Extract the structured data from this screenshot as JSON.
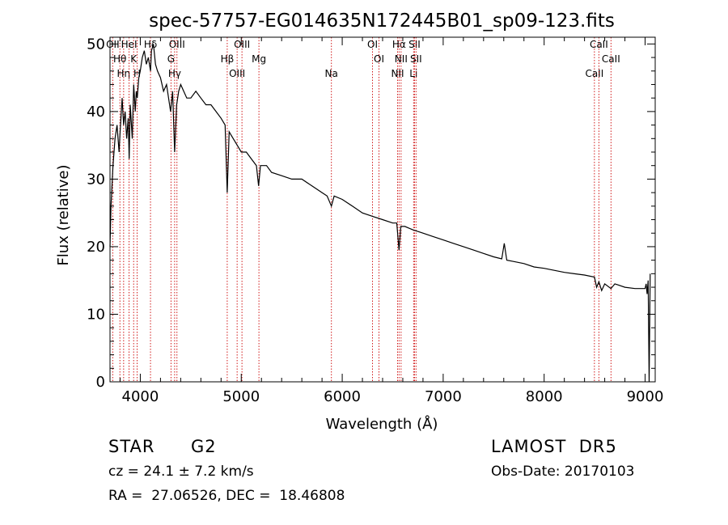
{
  "chart_data": {
    "type": "line",
    "title": "spec-57757-EG014635N172445B01_sp09-123.fits",
    "xlabel": "Wavelength (Å)",
    "ylabel": "Flux (relative)",
    "xlim": [
      3700,
      9100
    ],
    "ylim": [
      0,
      51
    ],
    "x_ticks": [
      4000,
      5000,
      6000,
      7000,
      8000,
      9000
    ],
    "y_ticks": [
      0,
      10,
      20,
      30,
      40,
      50
    ],
    "grid": false,
    "series": [
      {
        "color": "#000000",
        "x": [
          3700,
          3710,
          3730,
          3750,
          3770,
          3790,
          3800,
          3820,
          3835,
          3850,
          3865,
          3880,
          3890,
          3900,
          3920,
          3935,
          3950,
          3960,
          3970,
          3985,
          4000,
          4020,
          4040,
          4060,
          4080,
          4101,
          4110,
          4130,
          4150,
          4170,
          4200,
          4230,
          4260,
          4280,
          4300,
          4320,
          4340,
          4360,
          4380,
          4400,
          4430,
          4460,
          4500,
          4550,
          4600,
          4650,
          4700,
          4750,
          4800,
          4840,
          4861,
          4880,
          4920,
          4960,
          5000,
          5050,
          5100,
          5150,
          5172,
          5190,
          5250,
          5300,
          5400,
          5500,
          5600,
          5700,
          5800,
          5850,
          5893,
          5920,
          6000,
          6100,
          6200,
          6300,
          6400,
          6500,
          6540,
          6563,
          6580,
          6620,
          6700,
          6800,
          6900,
          7000,
          7100,
          7200,
          7300,
          7400,
          7500,
          7580,
          7605,
          7630,
          7700,
          7800,
          7900,
          8000,
          8100,
          8200,
          8300,
          8400,
          8498,
          8520,
          8542,
          8570,
          8600,
          8662,
          8700,
          8800,
          8900,
          9000,
          9010,
          9020,
          9030,
          9040,
          9050
        ],
        "y": [
          20,
          26,
          32,
          36,
          38,
          34,
          37,
          42,
          38,
          40,
          36,
          39,
          33,
          41,
          36,
          44,
          40,
          43,
          42,
          45,
          46,
          48,
          49,
          47,
          48,
          46,
          49,
          50,
          47,
          46,
          45,
          43,
          44,
          42,
          40,
          43,
          34,
          41,
          43,
          44,
          43,
          42,
          42,
          43,
          42,
          41,
          41,
          40,
          39,
          38,
          28,
          37,
          36,
          35,
          34,
          34,
          33,
          32,
          29,
          32,
          32,
          31,
          30.5,
          30,
          30,
          29,
          28,
          27.5,
          26,
          27.5,
          27,
          26,
          25,
          24.5,
          24,
          23.5,
          23.5,
          19.5,
          23,
          23,
          22.5,
          22,
          21.5,
          21,
          20.5,
          20,
          19.5,
          19,
          18.5,
          18.2,
          20.5,
          18,
          17.8,
          17.5,
          17,
          16.8,
          16.5,
          16.2,
          16,
          15.8,
          15.5,
          14,
          14.8,
          13.5,
          14.5,
          13.8,
          14.5,
          14,
          13.8,
          13.8,
          14.5,
          13,
          15,
          0,
          16
        ]
      }
    ],
    "line_markers": [
      {
        "wavelength": 3727,
        "label": "OII"
      },
      {
        "wavelength": 3798,
        "label": "Hθ"
      },
      {
        "wavelength": 3835,
        "label": "Hη"
      },
      {
        "wavelength": 3889,
        "label": "HeI"
      },
      {
        "wavelength": 3934,
        "label": "K"
      },
      {
        "wavelength": 3969,
        "label": "H"
      },
      {
        "wavelength": 4101,
        "label": "Hδ"
      },
      {
        "wavelength": 4304,
        "label": "G"
      },
      {
        "wavelength": 4340,
        "label": "Hγ"
      },
      {
        "wavelength": 4363,
        "label": "OIII"
      },
      {
        "wavelength": 4861,
        "label": "Hβ"
      },
      {
        "wavelength": 4959,
        "label": "OIII"
      },
      {
        "wavelength": 5007,
        "label": "OIII"
      },
      {
        "wavelength": 5175,
        "label": "Mg"
      },
      {
        "wavelength": 5893,
        "label": "Na"
      },
      {
        "wavelength": 6300,
        "label": "OI"
      },
      {
        "wavelength": 6364,
        "label": "OI"
      },
      {
        "wavelength": 6548,
        "label": "NII"
      },
      {
        "wavelength": 6563,
        "label": "Hα"
      },
      {
        "wavelength": 6583,
        "label": "NII"
      },
      {
        "wavelength": 6707,
        "label": "Li"
      },
      {
        "wavelength": 6716,
        "label": "SII"
      },
      {
        "wavelength": 6731,
        "label": "SII"
      },
      {
        "wavelength": 8498,
        "label": "CaII"
      },
      {
        "wavelength": 8542,
        "label": "CaII"
      },
      {
        "wavelength": 8662,
        "label": "CaII"
      }
    ]
  },
  "info": {
    "object_class": "STAR",
    "subclass": "G2",
    "survey": "LAMOST  DR5",
    "redshift_line": "cz = 24.1 ± 7.2 km/s",
    "obs_date_line": "Obs-Date: 20170103",
    "coords_line": "RA =  27.06526, DEC =  18.46808"
  },
  "colors": {
    "marker_line": "#cc0000",
    "spectrum": "#000000",
    "axis": "#000000"
  }
}
